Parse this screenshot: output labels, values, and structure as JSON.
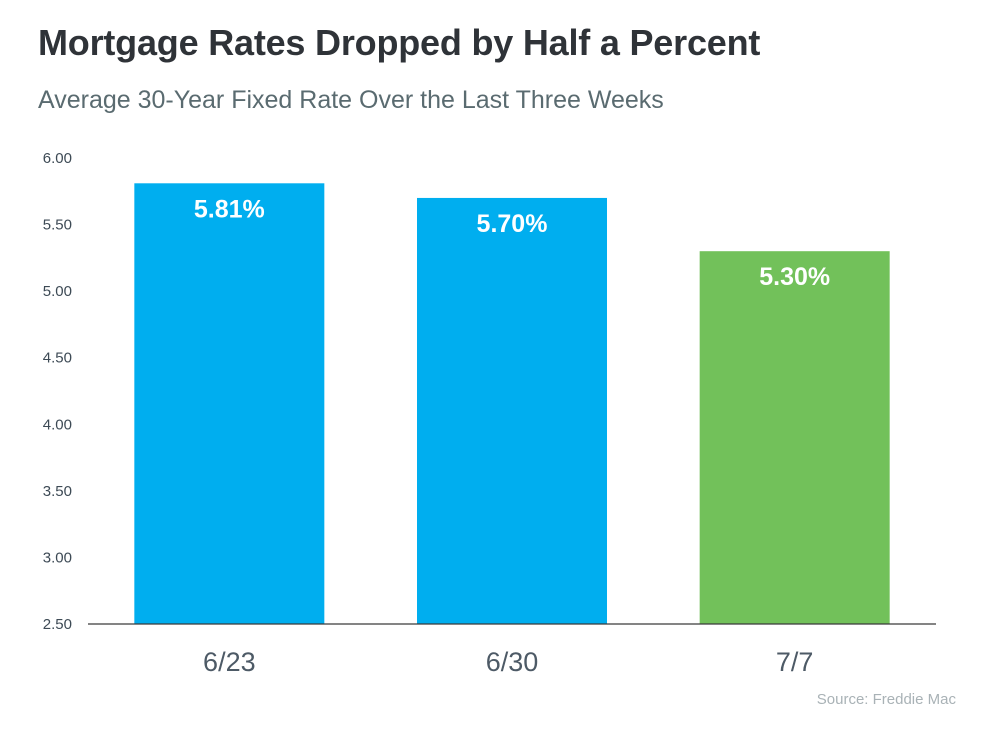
{
  "title": "Mortgage Rates Dropped by Half a Percent",
  "subtitle": "Average 30-Year Fixed Rate Over the Last Three Weeks",
  "source": "Source: Freddie Mac",
  "chart_data": {
    "type": "bar",
    "categories": [
      "6/23",
      "6/30",
      "7/7"
    ],
    "values": [
      5.81,
      5.7,
      5.3
    ],
    "data_labels": [
      "5.81%",
      "5.70%",
      "5.30%"
    ],
    "bar_colors": [
      "#00aeef",
      "#00aeef",
      "#72c15a"
    ],
    "ylim": [
      2.5,
      6.0
    ],
    "yticks": [
      "6.00",
      "5.50",
      "5.00",
      "4.50",
      "4.00",
      "3.50",
      "3.00",
      "2.50"
    ],
    "grid": false,
    "legend": "none"
  }
}
